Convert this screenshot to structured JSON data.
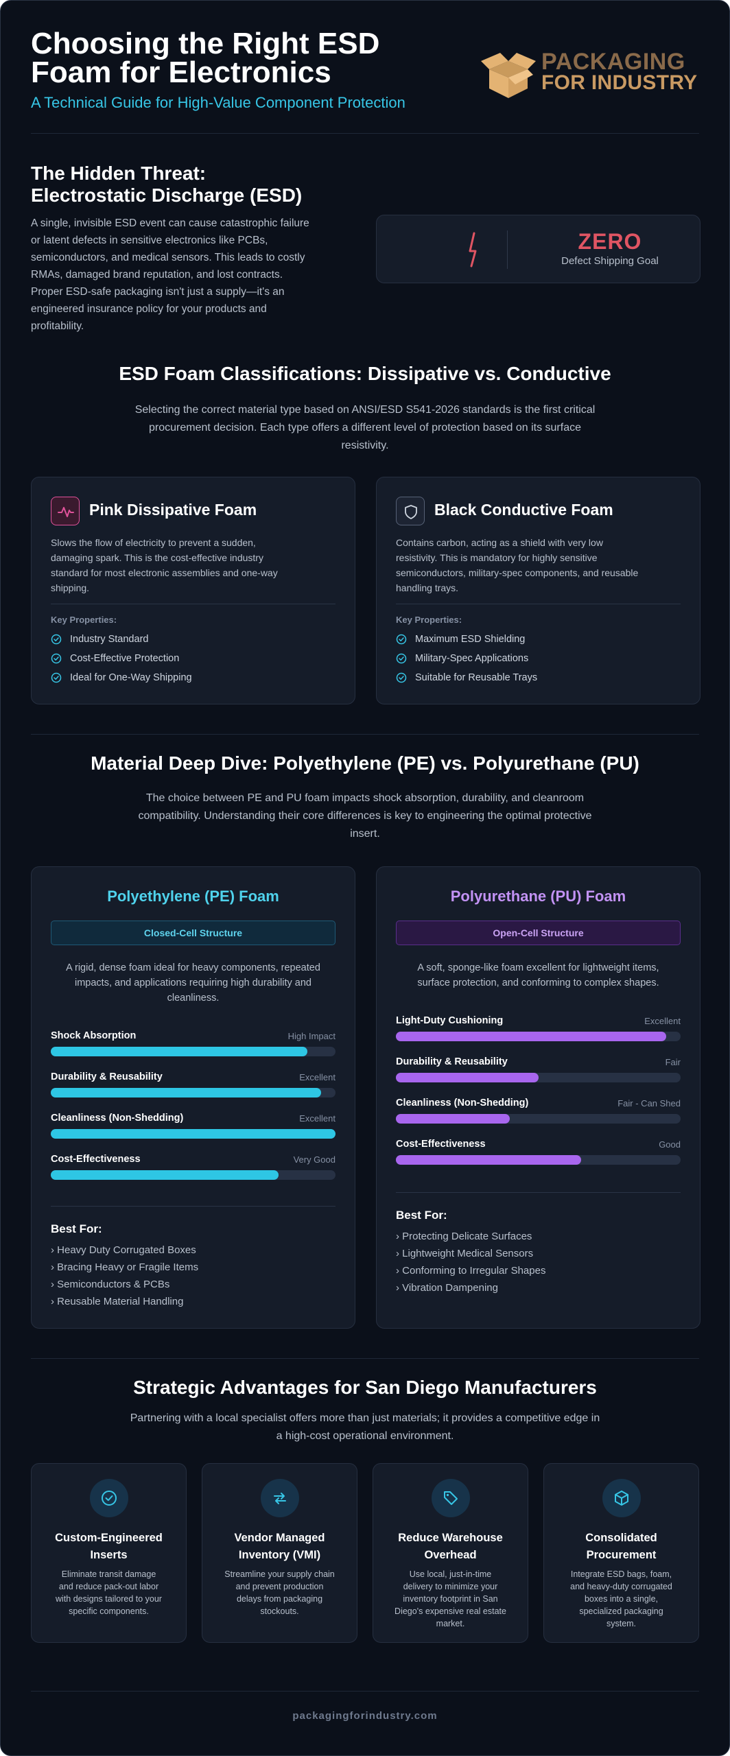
{
  "header": {
    "title_line1": "Choosing the Right ESD",
    "title_line2": "Foam for Electronics",
    "subtitle": "A Technical Guide for High-Value Component Protection",
    "logo": {
      "line1": "PACKAGING",
      "line2": "FOR INDUSTRY",
      "icon": "open-box-icon",
      "colors": {
        "box": "#e4b373",
        "text1": "#8a6a4a",
        "text2": "#c99a63"
      }
    }
  },
  "threat": {
    "title_line1": "The Hidden Threat:",
    "title_line2": "Electrostatic Discharge (ESD)",
    "body_lines": [
      "A single, invisible ESD event can cause catastrophic failure",
      "or latent defects in sensitive electronics like PCBs,",
      "semiconductors, and medical sensors. This leads to costly",
      "RMAs, damaged brand reputation, and lost contracts.",
      "Proper ESD-safe packaging isn't just a supply—it's an",
      "engineered insurance policy for your products and",
      "profitability."
    ],
    "stat": {
      "icon": "lightning-bolt-icon",
      "value": "ZERO",
      "label": "Defect Shipping Goal",
      "color": "#e05563"
    }
  },
  "classifications": {
    "title": "ESD Foam Classifications: Dissipative vs. Conductive",
    "intro_lines": [
      "Selecting the correct material type based on ANSI/ESD S541-2026 standards is the first critical",
      "procurement decision. Each type offers a different level of protection based on its surface",
      "resistivity."
    ],
    "cards": [
      {
        "title": "Pink Dissipative Foam",
        "icon": "pulse-icon",
        "desc_lines": [
          "Slows the flow of electricity to prevent a sudden,",
          "damaging spark. This is the cost-effective industry",
          "standard for most electronic assemblies and one-way",
          "shipping."
        ],
        "key_label": "Key Properties:",
        "properties": [
          "Industry Standard",
          "Cost-Effective Protection",
          "Ideal for One-Way Shipping"
        ]
      },
      {
        "title": "Black Conductive Foam",
        "icon": "shield-icon",
        "desc_lines": [
          "Contains carbon, acting as a shield with very low",
          "resistivity. This is mandatory for highly sensitive",
          "semiconductors, military-spec components, and reusable",
          "handling trays."
        ],
        "key_label": "Key Properties:",
        "properties": [
          "Maximum ESD Shielding",
          "Military-Spec Applications",
          "Suitable for Reusable Trays"
        ]
      }
    ],
    "accent": "#37c6e6",
    "pink": "#e0529a"
  },
  "materials": {
    "title": "Material Deep Dive: Polyethylene (PE) vs. Polyurethane (PU)",
    "intro_lines": [
      "The choice between PE and PU foam impacts shock absorption, durability, and cleanroom",
      "compatibility. Understanding their core differences is key to engineering the optimal protective",
      "insert."
    ],
    "pe": {
      "title": "Polyethylene (PE) Foam",
      "badge": "Closed-Cell Structure",
      "desc_lines": [
        "A rigid, dense foam ideal for heavy components, repeated",
        "impacts, and applications requiring high durability and",
        "cleanliness."
      ],
      "color": "#2ec6e4",
      "metrics": [
        {
          "name": "Shock Absorption",
          "rating": "High Impact",
          "level": 0.9
        },
        {
          "name": "Durability & Reusability",
          "rating": "Excellent",
          "level": 0.95
        },
        {
          "name": "Cleanliness (Non-Shedding)",
          "rating": "Excellent",
          "level": 1.0
        },
        {
          "name": "Cost-Effectiveness",
          "rating": "Very Good",
          "level": 0.8
        }
      ],
      "best_for_title": "Best For:",
      "best_for": [
        "› Heavy Duty Corrugated Boxes",
        "› Bracing Heavy or Fragile Items",
        "› Semiconductors & PCBs",
        "› Reusable Material Handling"
      ]
    },
    "pu": {
      "title": "Polyurethane (PU) Foam",
      "badge": "Open-Cell Structure",
      "desc_lines": [
        "A soft, sponge-like foam excellent for lightweight items,",
        "surface protection, and conforming to complex shapes."
      ],
      "color": "#a866ee",
      "metrics": [
        {
          "name": "Light-Duty Cushioning",
          "rating": "Excellent",
          "level": 0.95
        },
        {
          "name": "Durability & Reusability",
          "rating": "Fair",
          "level": 0.5
        },
        {
          "name": "Cleanliness (Non-Shedding)",
          "rating": "Fair - Can Shed",
          "level": 0.4
        },
        {
          "name": "Cost-Effectiveness",
          "rating": "Good",
          "level": 0.65
        }
      ],
      "best_for_title": "Best For:",
      "best_for": [
        "› Protecting Delicate Surfaces",
        "› Lightweight Medical Sensors",
        "› Conforming to Irregular Shapes",
        "› Vibration Dampening"
      ]
    }
  },
  "advantages": {
    "title": "Strategic Advantages for San Diego Manufacturers",
    "intro_lines": [
      "Partnering with a local specialist offers more than just materials; it provides a competitive edge in",
      "a high-cost operational environment."
    ],
    "cards": [
      {
        "icon": "check-circle-icon",
        "title_lines": [
          "Custom-Engineered",
          "Inserts"
        ],
        "desc_lines": [
          "Eliminate transit damage",
          "and reduce pack-out labor",
          "with designs tailored to your",
          "specific components."
        ]
      },
      {
        "icon": "swap-arrows-icon",
        "title_lines": [
          "Vendor Managed",
          "Inventory (VMI)"
        ],
        "desc_lines": [
          "Streamline your supply chain",
          "and prevent production",
          "delays from packaging",
          "stockouts."
        ]
      },
      {
        "icon": "tag-icon",
        "title_lines": [
          "Reduce Warehouse",
          "Overhead"
        ],
        "desc_lines": [
          "Use local, just-in-time",
          "delivery to minimize your",
          "inventory footprint in San",
          "Diego's expensive real estate",
          "market."
        ]
      },
      {
        "icon": "cube-icon",
        "title_lines": [
          "Consolidated",
          "Procurement"
        ],
        "desc_lines": [
          "Integrate ESD bags, foam,",
          "and heavy-duty corrugated",
          "boxes into a single,",
          "specialized packaging",
          "system."
        ]
      }
    ]
  },
  "footer": {
    "text": "packagingforindustry.com"
  }
}
